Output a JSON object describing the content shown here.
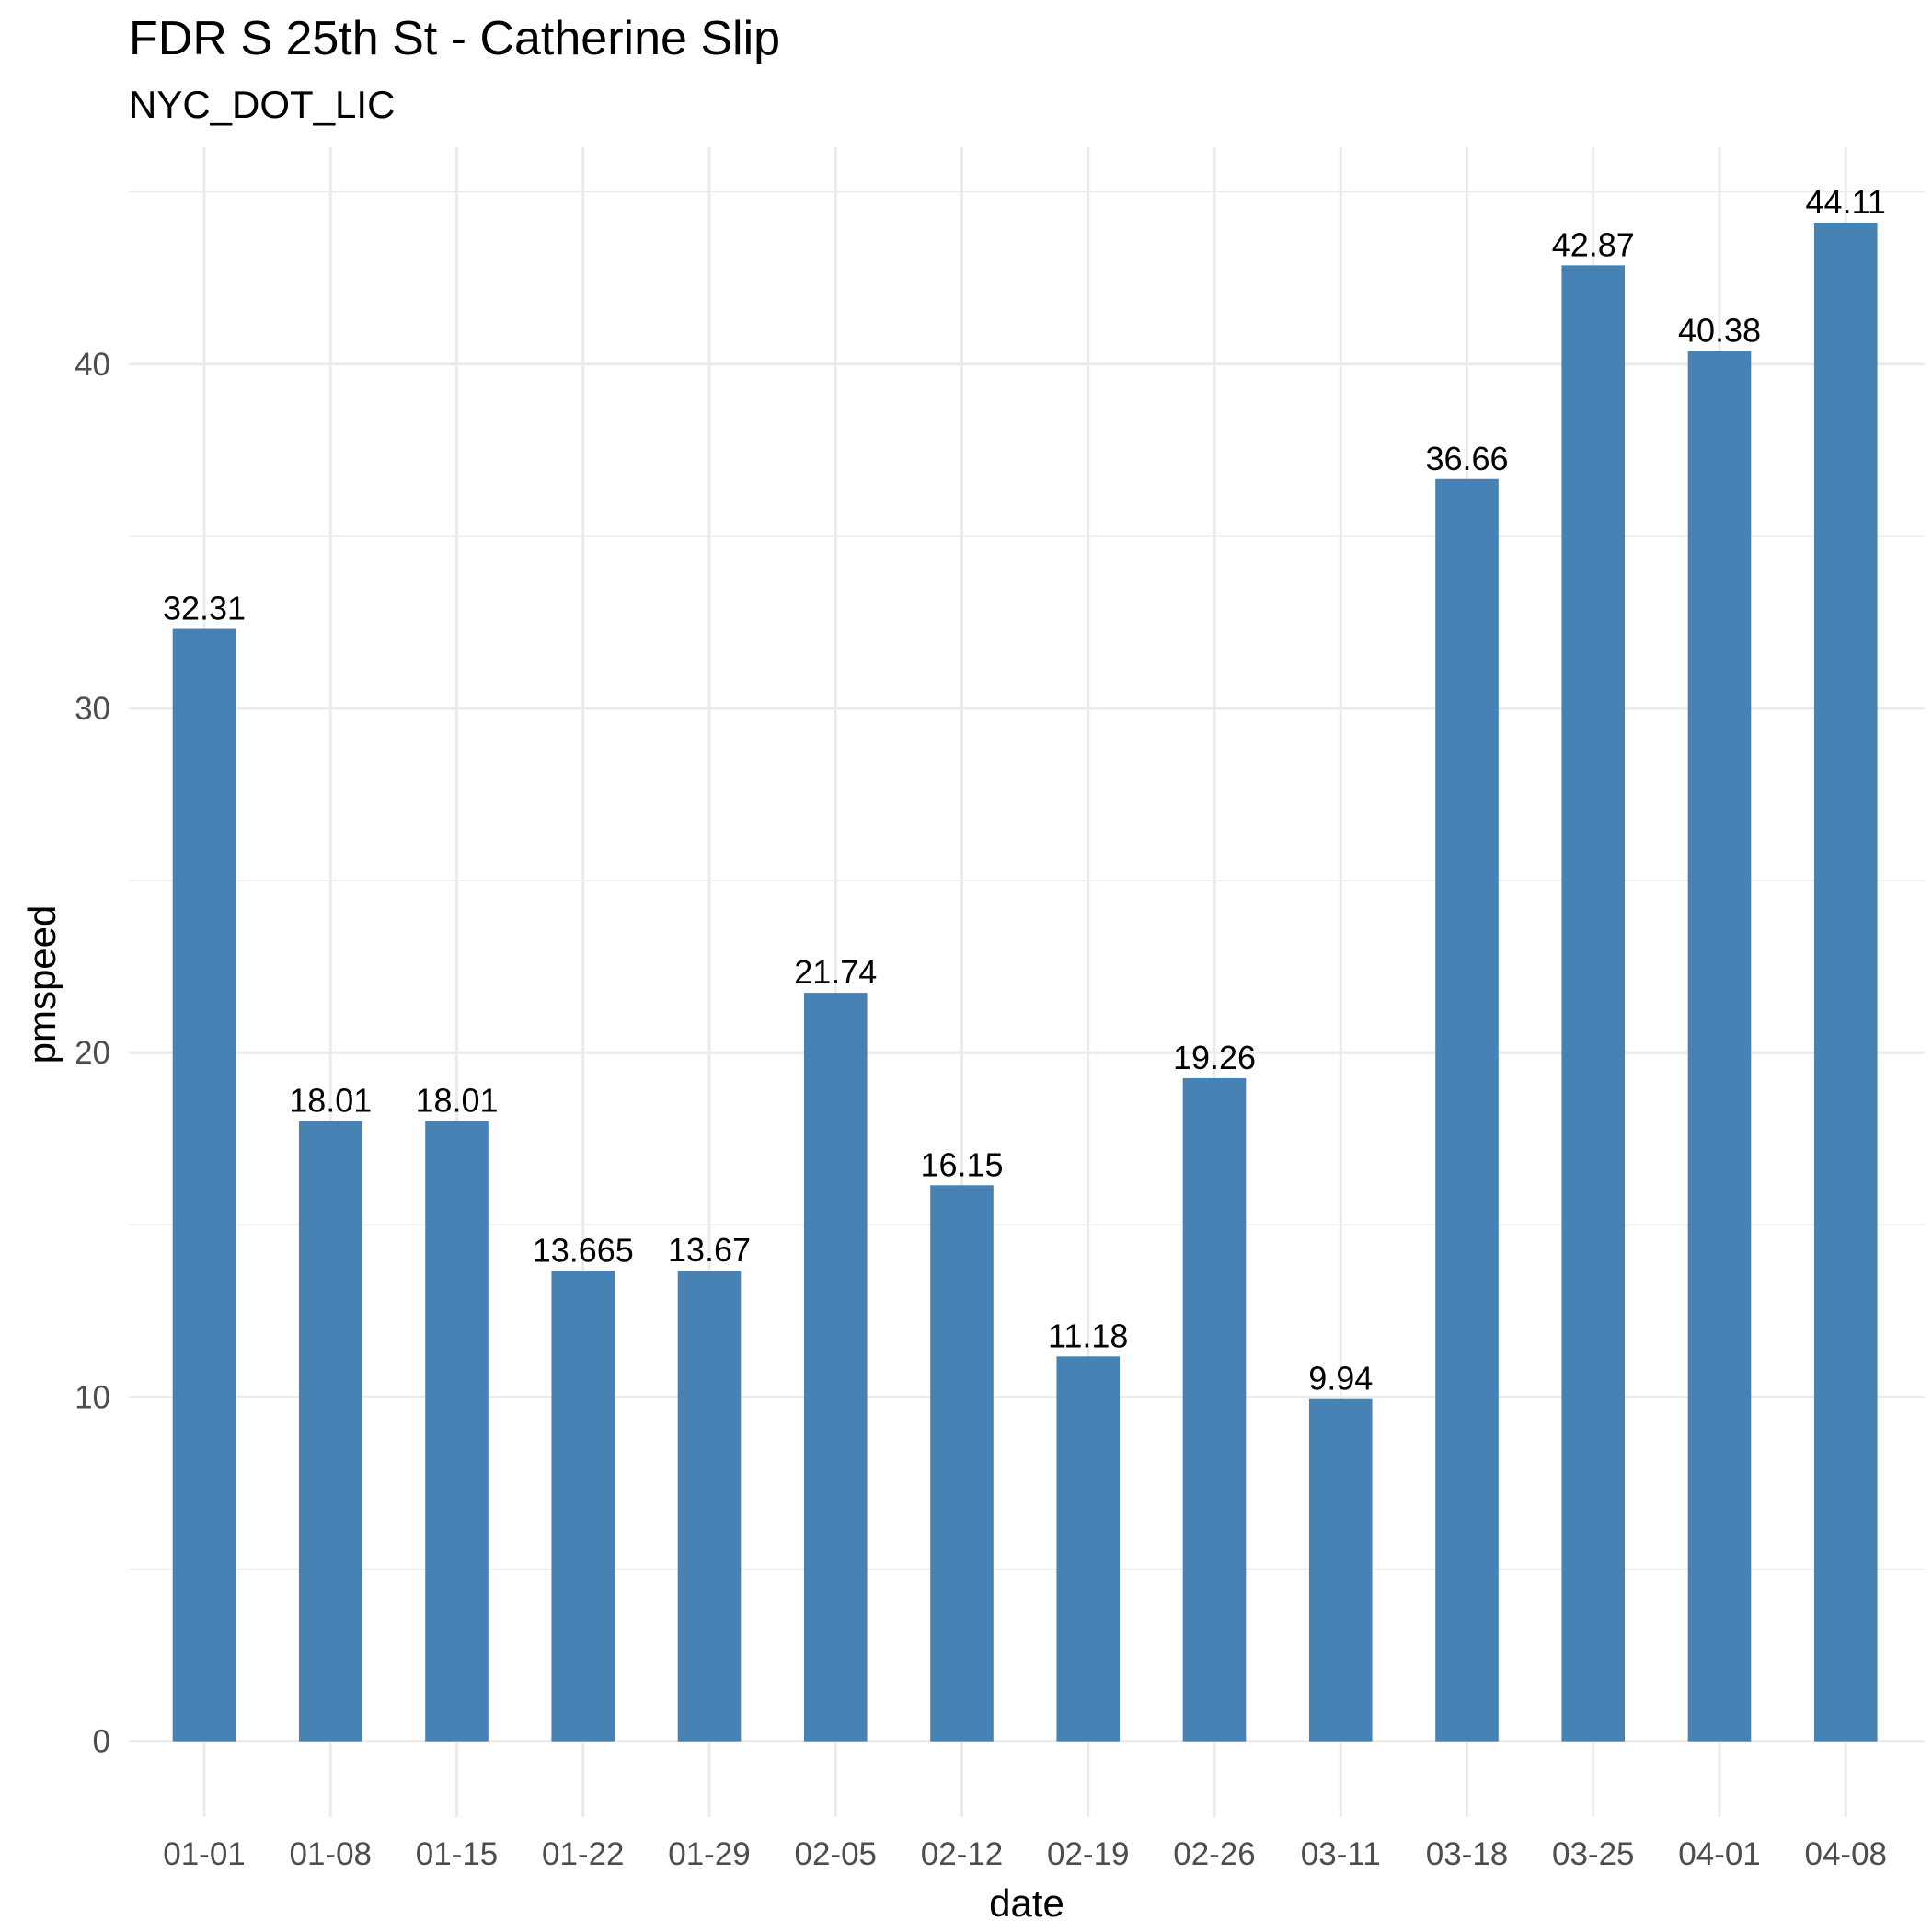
{
  "chart_data": {
    "type": "bar",
    "title": "FDR S 25th St - Catherine Slip",
    "subtitle": "NYC_DOT_LIC",
    "xlabel": "date",
    "ylabel": "pmspeed",
    "categories": [
      "01-01",
      "01-08",
      "01-15",
      "01-22",
      "01-29",
      "02-05",
      "02-12",
      "02-19",
      "02-26",
      "03-11",
      "03-18",
      "03-25",
      "04-01",
      "04-08"
    ],
    "values": [
      32.31,
      18.01,
      18.01,
      13.665,
      13.67,
      21.74,
      16.15,
      11.18,
      19.26,
      9.94,
      36.66,
      42.87,
      40.38,
      44.11
    ],
    "value_labels": [
      "32.31",
      "18.01",
      "18.01",
      "13.665",
      "13.67",
      "21.74",
      "16.15",
      "11.18",
      "19.26",
      "9.94",
      "36.66",
      "42.87",
      "40.38",
      "44.11"
    ],
    "yticks": [
      0,
      10,
      20,
      30,
      40
    ],
    "ylim": [
      -2.2,
      46.3
    ],
    "grid": true,
    "legend": "none",
    "bar_color": "#4682B4",
    "grid_color": "#EBEBEB"
  }
}
